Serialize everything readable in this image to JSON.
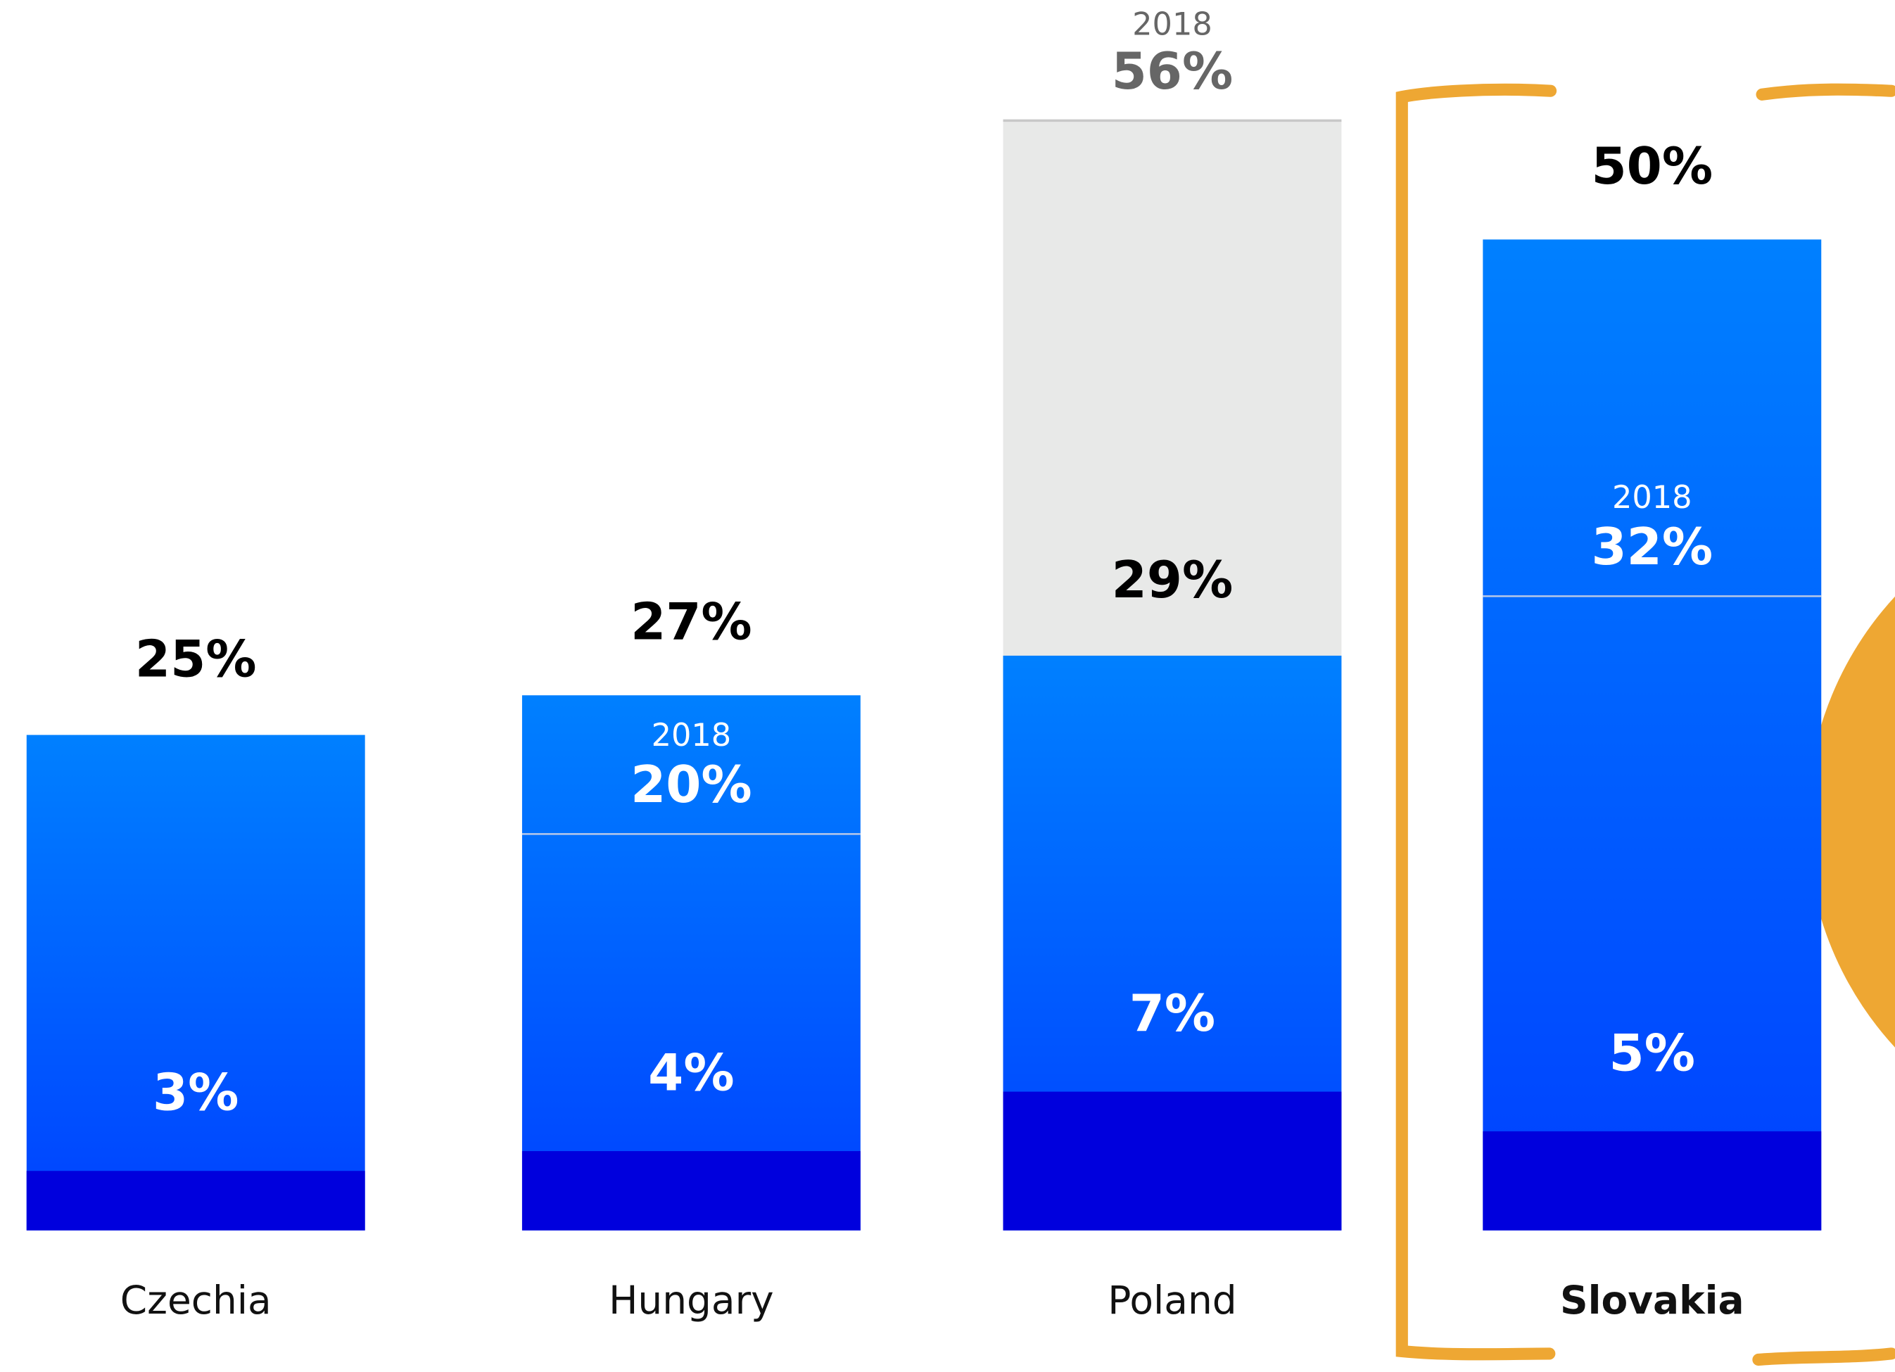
{
  "chart_data": {
    "type": "bar",
    "categories": [
      "Czechia",
      "Hungary",
      "Poland",
      "Slovakia"
    ],
    "values": [
      25,
      27,
      29,
      50
    ],
    "value_labels": [
      "25%",
      "27%",
      "29%",
      "50%"
    ],
    "inner_values": [
      3,
      4,
      7,
      5
    ],
    "inner_value_labels": [
      "3%",
      "4%",
      "7%",
      "5%"
    ],
    "values_2018": [
      null,
      20,
      56,
      32
    ],
    "value_labels_2018": [
      null,
      "20%",
      "56%",
      "32%"
    ],
    "label_2018": "2018",
    "color": "#0060ff",
    "inner_color": "#0000dd",
    "color_2018": "#e8e9e8",
    "ylim": [
      0,
      60
    ]
  }
}
